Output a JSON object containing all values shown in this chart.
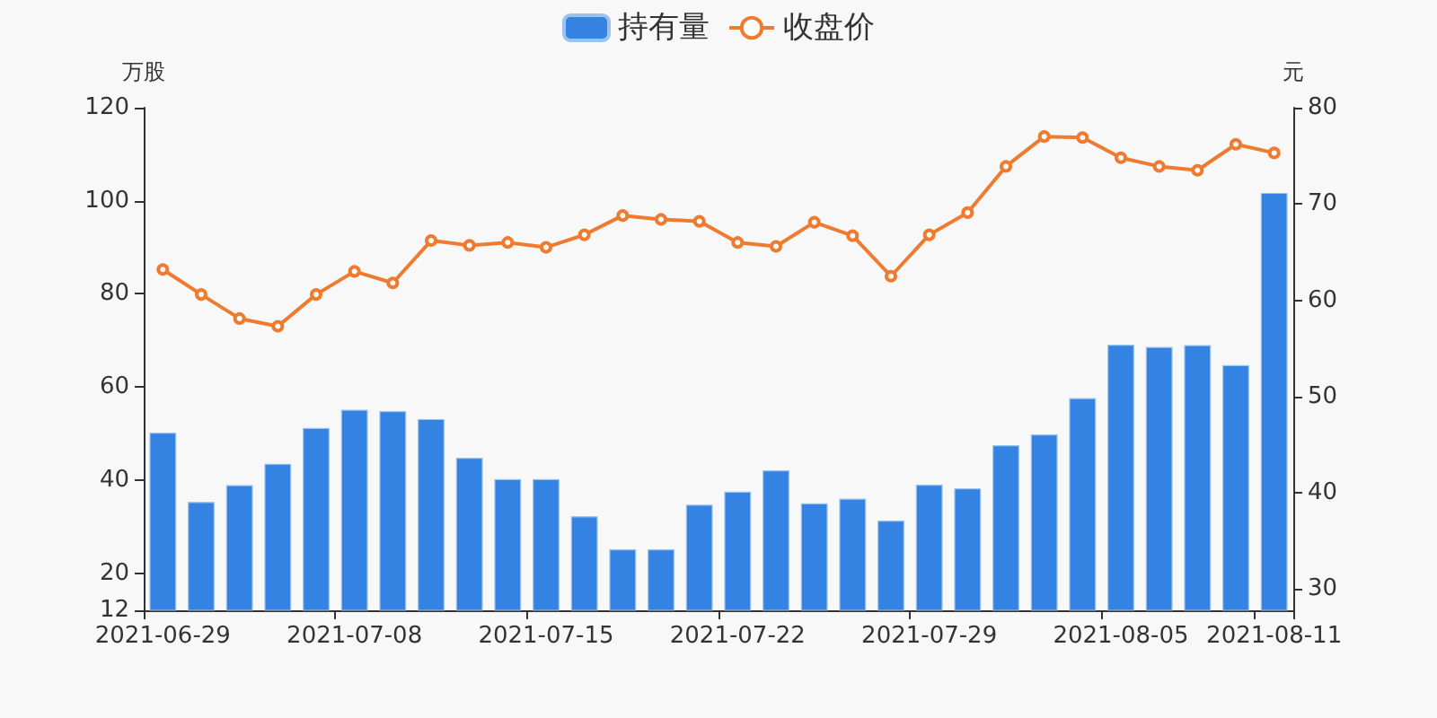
{
  "chart_data": {
    "type": "bar",
    "ylabel": "万股",
    "y2label": "元",
    "categories": [
      "2021-06-29",
      null,
      null,
      null,
      null,
      "2021-07-08",
      null,
      null,
      null,
      null,
      "2021-07-15",
      null,
      null,
      null,
      null,
      "2021-07-22",
      null,
      null,
      null,
      null,
      "2021-07-29",
      null,
      null,
      null,
      null,
      "2021-08-05",
      null,
      null,
      null,
      "2021-08-11"
    ],
    "ylim": [
      12,
      120
    ],
    "yticks": [
      12,
      20,
      40,
      60,
      80,
      100,
      120
    ],
    "y2lim": [
      27.8,
      80
    ],
    "y2ticks": [
      30,
      40,
      50,
      60,
      70,
      80
    ],
    "series": [
      {
        "name": "持有量",
        "color": "#3483e3",
        "values": [
          50.2,
          35.3,
          38.9,
          43.5,
          51.2,
          55.1,
          54.8,
          53.1,
          44.8,
          40.2,
          40.2,
          32.2,
          25.1,
          25.1,
          34.7,
          37.5,
          42.1,
          35.0,
          36.0,
          31.3,
          39.0,
          38.2,
          47.5,
          49.8,
          57.6,
          69.1,
          68.6,
          69.0,
          64.7,
          101.7
        ]
      },
      {
        "name": "收盘价",
        "type": "line",
        "axis": "y2",
        "color": "#ee7b30",
        "values": [
          63.2,
          60.6,
          58.1,
          57.3,
          60.6,
          63.0,
          61.8,
          66.2,
          65.7,
          66.0,
          65.5,
          66.8,
          68.8,
          68.4,
          68.2,
          66.0,
          65.6,
          68.1,
          66.7,
          62.5,
          66.8,
          69.1,
          73.9,
          77.0,
          76.9,
          74.8,
          73.9,
          73.5,
          76.2,
          75.3
        ]
      }
    ],
    "legend": "top",
    "marker": "circle",
    "grid": false
  }
}
